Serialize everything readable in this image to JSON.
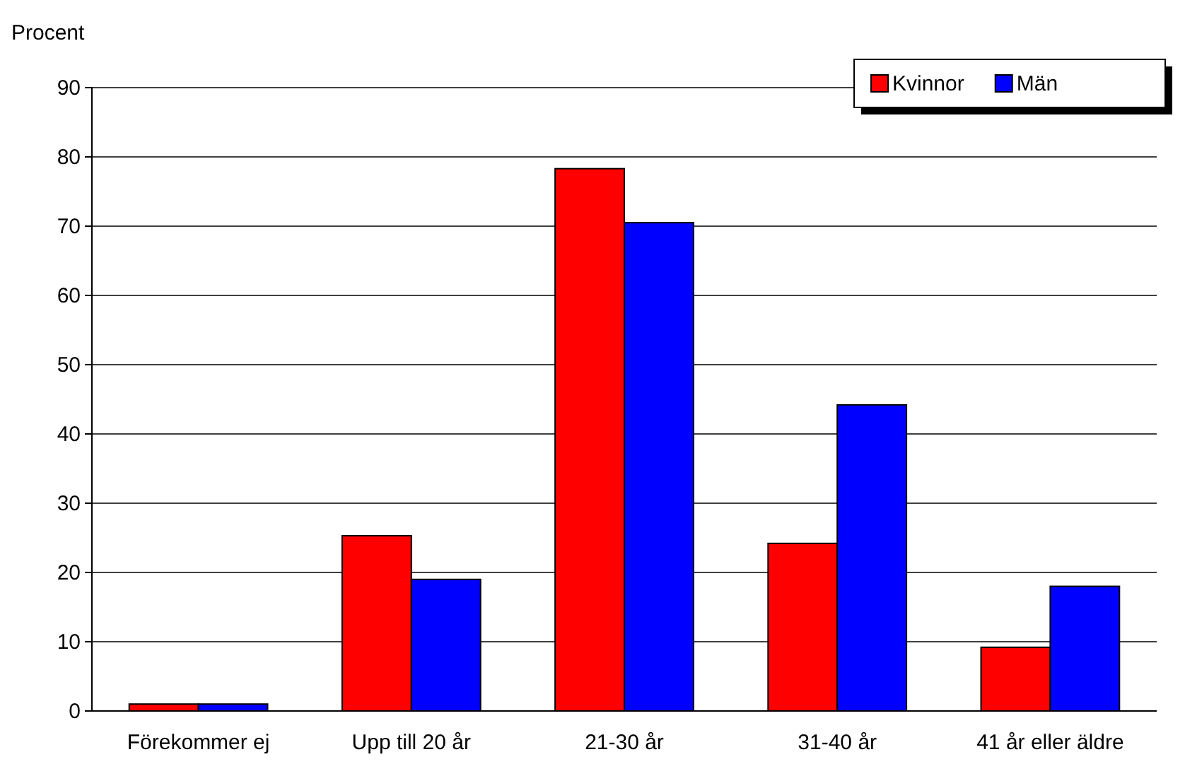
{
  "chart_data": {
    "type": "bar",
    "ylabel": "Procent",
    "categories": [
      "Förekommer ej",
      "Upp till 20 år",
      "21-30 år",
      "31-40 år",
      "41 år eller äldre"
    ],
    "series": [
      {
        "name": "Kvinnor",
        "color": "#ff0000",
        "values": [
          1,
          25.3,
          78.3,
          24.2,
          9.2
        ]
      },
      {
        "name": "Män",
        "color": "#0000ff",
        "values": [
          1,
          19,
          70.5,
          44.2,
          18
        ]
      }
    ],
    "ylim": [
      0,
      90
    ],
    "yticks": [
      0,
      10,
      20,
      30,
      40,
      50,
      60,
      70,
      80,
      90
    ],
    "grid": "y",
    "legend": "top right"
  }
}
